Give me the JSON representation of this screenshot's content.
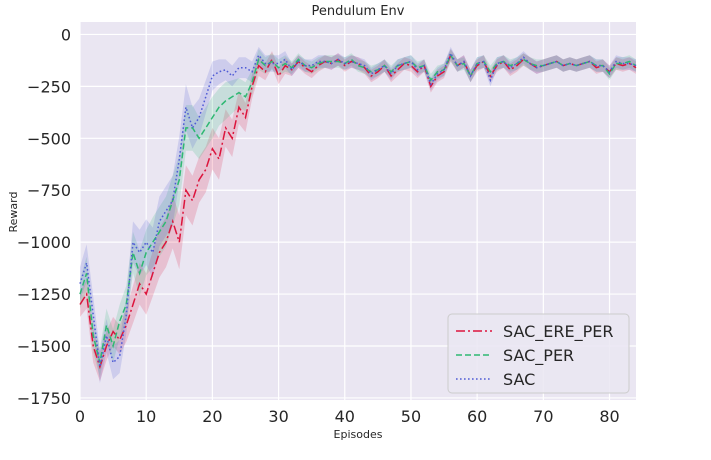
{
  "chart_data": {
    "type": "line",
    "title": "Pendulum Env",
    "xlabel": "Episodes",
    "ylabel": "Reward",
    "xlim": [
      0,
      84
    ],
    "ylim": [
      -1760,
      60
    ],
    "xticks": [
      0,
      10,
      20,
      30,
      40,
      50,
      60,
      70,
      80
    ],
    "yticks": [
      0,
      -250,
      -500,
      -750,
      -1000,
      -1250,
      -1500,
      -1750
    ],
    "xtick_labels": [
      "0",
      "10",
      "20",
      "30",
      "40",
      "50",
      "60",
      "70",
      "80"
    ],
    "ytick_labels": [
      "0",
      "−250",
      "−500",
      "−750",
      "−1000",
      "−1250",
      "−1500",
      "−1750"
    ],
    "grid": true,
    "legend_position": "lower-right",
    "series": [
      {
        "name": "SAC_ERE_PER",
        "color": "#dc143c",
        "linestyle": "dashdot",
        "x": [
          0,
          1,
          2,
          3,
          4,
          5,
          6,
          7,
          8,
          9,
          10,
          11,
          12,
          13,
          14,
          15,
          16,
          17,
          18,
          19,
          20,
          21,
          22,
          23,
          24,
          25,
          26,
          27,
          28,
          29,
          30,
          31,
          32,
          33,
          34,
          35,
          36,
          37,
          38,
          39,
          40,
          41,
          42,
          43,
          44,
          45,
          46,
          47,
          48,
          49,
          50,
          51,
          52,
          53,
          54,
          55,
          56,
          57,
          58,
          59,
          60,
          61,
          62,
          63,
          64,
          65,
          66,
          67,
          68,
          69,
          70,
          71,
          72,
          73,
          74,
          75,
          76,
          77,
          78,
          79,
          80,
          81,
          82,
          83,
          84
        ],
        "y": [
          -1300,
          -1250,
          -1500,
          -1600,
          -1500,
          -1430,
          -1470,
          -1400,
          -1300,
          -1200,
          -1250,
          -1150,
          -1050,
          -1000,
          -900,
          -1000,
          -750,
          -800,
          -700,
          -650,
          -550,
          -600,
          -450,
          -500,
          -350,
          -400,
          -250,
          -150,
          -180,
          -120,
          -200,
          -150,
          -170,
          -130,
          -160,
          -180,
          -150,
          -130,
          -140,
          -120,
          -150,
          -130,
          -140,
          -160,
          -200,
          -180,
          -150,
          -200,
          -170,
          -140,
          -150,
          -180,
          -150,
          -250,
          -200,
          -180,
          -100,
          -150,
          -130,
          -200,
          -150,
          -130,
          -200,
          -150,
          -130,
          -170,
          -150,
          -120,
          -140,
          -160,
          -150,
          -140,
          -130,
          -150,
          -140,
          -150,
          -140,
          -130,
          -160,
          -150,
          -180,
          -140,
          -150,
          -140,
          -160
        ],
        "band": [
          60,
          70,
          80,
          70,
          70,
          70,
          70,
          80,
          90,
          100,
          100,
          110,
          120,
          120,
          130,
          130,
          120,
          120,
          110,
          110,
          100,
          100,
          90,
          90,
          80,
          70,
          60,
          50,
          40,
          40,
          40,
          40,
          30,
          30,
          30,
          30,
          30,
          30,
          30,
          30,
          30,
          30,
          30,
          30,
          30,
          30,
          30,
          30,
          30,
          30,
          30,
          30,
          30,
          30,
          30,
          30,
          30,
          30,
          30,
          30,
          30,
          30,
          30,
          30,
          30,
          30,
          30,
          30,
          30,
          30,
          30,
          30,
          30,
          30,
          30,
          30,
          30,
          30,
          30,
          30,
          30,
          30,
          30,
          30,
          30
        ]
      },
      {
        "name": "SAC_PER",
        "color": "#2eb872",
        "linestyle": "dashed",
        "x": [
          0,
          1,
          2,
          3,
          4,
          5,
          6,
          7,
          8,
          9,
          10,
          11,
          12,
          13,
          14,
          15,
          16,
          17,
          18,
          19,
          20,
          21,
          22,
          23,
          24,
          25,
          26,
          27,
          28,
          29,
          30,
          31,
          32,
          33,
          34,
          35,
          36,
          37,
          38,
          39,
          40,
          41,
          42,
          43,
          44,
          45,
          46,
          47,
          48,
          49,
          50,
          51,
          52,
          53,
          54,
          55,
          56,
          57,
          58,
          59,
          60,
          61,
          62,
          63,
          64,
          65,
          66,
          67,
          68,
          69,
          70,
          71,
          72,
          73,
          74,
          75,
          76,
          77,
          78,
          79,
          80,
          81,
          82,
          83,
          84
        ],
        "y": [
          -1250,
          -1150,
          -1450,
          -1580,
          -1400,
          -1500,
          -1380,
          -1300,
          -1050,
          -1150,
          -1050,
          -1000,
          -950,
          -900,
          -800,
          -700,
          -450,
          -450,
          -500,
          -450,
          -400,
          -350,
          -320,
          -300,
          -280,
          -300,
          -230,
          -120,
          -150,
          -130,
          -160,
          -140,
          -160,
          -120,
          -150,
          -160,
          -140,
          -130,
          -130,
          -130,
          -140,
          -120,
          -150,
          -160,
          -180,
          -170,
          -150,
          -180,
          -150,
          -140,
          -130,
          -160,
          -150,
          -220,
          -180,
          -170,
          -100,
          -150,
          -140,
          -200,
          -140,
          -130,
          -180,
          -140,
          -130,
          -150,
          -140,
          -120,
          -140,
          -150,
          -150,
          -140,
          -130,
          -150,
          -140,
          -150,
          -140,
          -130,
          -150,
          -150,
          -190,
          -140,
          -140,
          -130,
          -150
        ],
        "band": [
          70,
          80,
          80,
          70,
          80,
          80,
          80,
          90,
          100,
          110,
          110,
          120,
          120,
          120,
          120,
          120,
          110,
          110,
          100,
          100,
          100,
          90,
          90,
          80,
          70,
          70,
          60,
          50,
          40,
          40,
          40,
          40,
          30,
          30,
          30,
          30,
          30,
          30,
          30,
          30,
          30,
          30,
          30,
          30,
          30,
          30,
          30,
          30,
          30,
          30,
          30,
          30,
          30,
          30,
          30,
          30,
          30,
          30,
          30,
          30,
          30,
          30,
          30,
          30,
          30,
          30,
          30,
          30,
          30,
          30,
          30,
          30,
          30,
          30,
          30,
          30,
          30,
          30,
          30,
          30,
          30,
          30,
          30,
          30,
          30
        ]
      },
      {
        "name": "SAC",
        "color": "#4f5bd5",
        "linestyle": "dotted",
        "x": [
          0,
          1,
          2,
          3,
          4,
          5,
          6,
          7,
          8,
          9,
          10,
          11,
          12,
          13,
          14,
          15,
          16,
          17,
          18,
          19,
          20,
          21,
          22,
          23,
          24,
          25,
          26,
          27,
          28,
          29,
          30,
          31,
          32,
          33,
          34,
          35,
          36,
          37,
          38,
          39,
          40,
          41,
          42,
          43,
          44,
          45,
          46,
          47,
          48,
          49,
          50,
          51,
          52,
          53,
          54,
          55,
          56,
          57,
          58,
          59,
          60,
          61,
          62,
          63,
          64,
          65,
          66,
          67,
          68,
          69,
          70,
          71,
          72,
          73,
          74,
          75,
          76,
          77,
          78,
          79,
          80,
          81,
          82,
          83,
          84
        ],
        "y": [
          -1200,
          -1100,
          -1350,
          -1600,
          -1450,
          -1580,
          -1550,
          -1350,
          -1000,
          -1050,
          -1000,
          -1050,
          -900,
          -850,
          -800,
          -600,
          -350,
          -450,
          -400,
          -300,
          -200,
          -180,
          -170,
          -200,
          -160,
          -160,
          -180,
          -100,
          -140,
          -140,
          -140,
          -120,
          -170,
          -130,
          -150,
          -150,
          -130,
          -130,
          -140,
          -120,
          -140,
          -130,
          -140,
          -150,
          -190,
          -170,
          -150,
          -190,
          -150,
          -140,
          -130,
          -170,
          -150,
          -240,
          -190,
          -170,
          -90,
          -150,
          -130,
          -200,
          -140,
          -130,
          -220,
          -140,
          -130,
          -160,
          -140,
          -110,
          -140,
          -160,
          -150,
          -140,
          -130,
          -150,
          -140,
          -150,
          -140,
          -130,
          -150,
          -150,
          -180,
          -130,
          -140,
          -140,
          -150
        ],
        "band": [
          80,
          90,
          90,
          80,
          80,
          80,
          80,
          90,
          100,
          110,
          110,
          120,
          120,
          120,
          120,
          110,
          110,
          100,
          90,
          80,
          70,
          60,
          50,
          50,
          50,
          50,
          50,
          40,
          40,
          40,
          40,
          40,
          30,
          30,
          30,
          30,
          30,
          30,
          30,
          30,
          30,
          30,
          30,
          30,
          30,
          30,
          30,
          30,
          30,
          30,
          30,
          30,
          30,
          30,
          30,
          30,
          30,
          30,
          30,
          30,
          30,
          30,
          30,
          30,
          30,
          30,
          30,
          30,
          30,
          30,
          30,
          30,
          30,
          30,
          30,
          30,
          30,
          30,
          30,
          30,
          30,
          30,
          30,
          30,
          30
        ]
      }
    ]
  },
  "style": {
    "plot_background": "#eae6f2",
    "grid_color": "#ffffff"
  }
}
